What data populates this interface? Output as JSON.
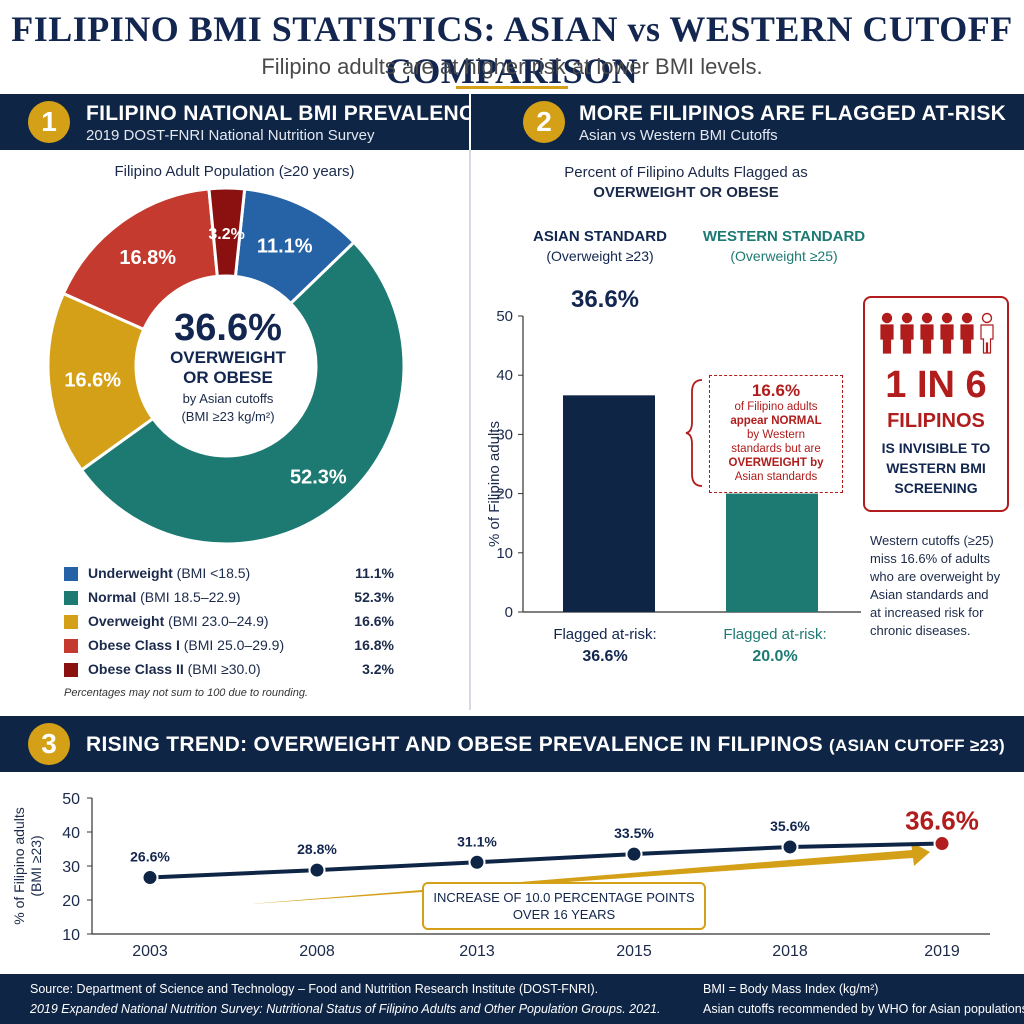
{
  "header": {
    "title": "FILIPINO BMI STATISTICS: ASIAN vs WESTERN CUTOFF COMPARISON",
    "subtitle": "Filipino adults are at higher risk at lower BMI levels."
  },
  "section1": {
    "number": "1",
    "title": "FILIPINO NATIONAL BMI PREVALENCE",
    "subtitle": "2019 DOST-FNRI National Nutrition Survey",
    "chart_title": "Filipino Adult Population (≥20 years)",
    "center_value": "36.6%",
    "center_label_1": "OVERWEIGHT",
    "center_label_2": "OR OBESE",
    "center_note_1": "by Asian cutoffs",
    "center_note_2": "(BMI ≥23 kg/m²)",
    "legend": [
      {
        "name": "Underweight",
        "range": "(BMI <18.5)",
        "value": "11.1%"
      },
      {
        "name": "Normal",
        "range": "(BMI 18.5–22.9)",
        "value": "52.3%"
      },
      {
        "name": "Overweight",
        "range": "(BMI 23.0–24.9)",
        "value": "16.6%"
      },
      {
        "name": "Obese Class I",
        "range": "(BMI 25.0–29.9)",
        "value": "16.8%"
      },
      {
        "name": "Obese Class II",
        "range": "(BMI ≥30.0)",
        "value": "3.2%"
      }
    ],
    "footnote": "Percentages may not sum to 100 due to rounding."
  },
  "section2": {
    "number": "2",
    "title": "MORE FILIPINOS ARE FLAGGED AT-RISK",
    "subtitle": "Asian vs Western BMI Cutoffs",
    "chart_title_1": "Percent of Filipino Adults Flagged as",
    "chart_title_2": "OVERWEIGHT OR OBESE",
    "asian_label": "ASIAN STANDARD",
    "asian_sub": "(Overweight ≥23)",
    "western_label": "WESTERN STANDARD",
    "western_sub": "(Overweight ≥25)",
    "asian_value_top": "36.6%",
    "flagged_label": "Flagged at-risk:",
    "asian_flagged": "36.6%",
    "western_flagged": "20.0%",
    "gap_value": "16.6%",
    "gap_text": [
      "of Filipino adults",
      "appear NORMAL",
      "by Western",
      "standards but are",
      "OVERWEIGHT by",
      "Asian standards"
    ],
    "callout_big": "1 IN 6",
    "callout_word": "FILIPINOS",
    "callout_text": [
      "IS INVISIBLE TO",
      "WESTERN BMI",
      "SCREENING"
    ],
    "side_note": [
      "Western cutoffs (≥25)",
      "miss 16.6% of adults",
      "who are overweight by",
      "Asian standards and",
      "at increased risk for",
      "chronic diseases."
    ]
  },
  "section3": {
    "number": "3",
    "title": "RISING TREND: OVERWEIGHT AND OBESE PREVALENCE IN FILIPINOS",
    "title_suffix": "(ASIAN CUTOFF ≥23)",
    "arrow_text_1": "INCREASE OF 10.0 PERCENTAGE POINTS",
    "arrow_text_2": "OVER 16 YEARS"
  },
  "footer": {
    "source_1": "Source: Department of Science and Technology – Food and Nutrition Research Institute (DOST-FNRI).",
    "source_2": "2019 Expanded National Nutrition Survey: Nutritional Status of Filipino Adults and Other Population Groups. 2021.",
    "note_1": "BMI = Body Mass Index (kg/m²)",
    "note_2": "Asian cutoffs recommended by WHO for Asian populations."
  },
  "colors": {
    "navy": "#0f2546",
    "teal": "#1d7a72",
    "gold": "#d4a017",
    "blue": "#2563a6",
    "red": "#c43a2f",
    "darkred": "#8b1010",
    "alert": "#b11c1c"
  },
  "chart_data": [
    {
      "type": "pie",
      "title": "Filipino Adult Population (≥20 years)",
      "categories": [
        "Underweight",
        "Normal",
        "Overweight",
        "Obese Class I",
        "Obese Class II"
      ],
      "values": [
        11.1,
        52.3,
        16.6,
        16.8,
        3.2
      ],
      "labels": [
        "11.1%",
        "52.3%",
        "16.6%",
        "16.8%",
        "3.2%"
      ],
      "colors": [
        "#2563a6",
        "#1d7a72",
        "#d4a017",
        "#c43a2f",
        "#8b1010"
      ]
    },
    {
      "type": "bar",
      "title": "Percent of Filipino Adults Flagged as OVERWEIGHT OR OBESE",
      "categories": [
        "ASIAN STANDARD",
        "WESTERN STANDARD"
      ],
      "values": [
        36.6,
        20.0
      ],
      "ylabel": "% of Filipino adults",
      "ylim": [
        0,
        50
      ],
      "yticks": [
        0,
        10,
        20,
        30,
        40,
        50
      ],
      "colors": [
        "#0f2546",
        "#1d7a72"
      ]
    },
    {
      "type": "line",
      "title": "RISING TREND: OVERWEIGHT AND OBESE PREVALENCE IN FILIPINOS",
      "x": [
        "2003",
        "2008",
        "2013",
        "2015",
        "2018",
        "2019"
      ],
      "values": [
        26.6,
        28.8,
        31.1,
        33.5,
        35.6,
        36.6
      ],
      "labels": [
        "26.6%",
        "28.8%",
        "31.1%",
        "33.5%",
        "35.6%",
        "36.6%"
      ],
      "ylabel": "% of Filipino adults (BMI ≥23)",
      "ylim": [
        10,
        50
      ],
      "yticks": [
        10,
        20,
        30,
        40,
        50
      ]
    }
  ]
}
